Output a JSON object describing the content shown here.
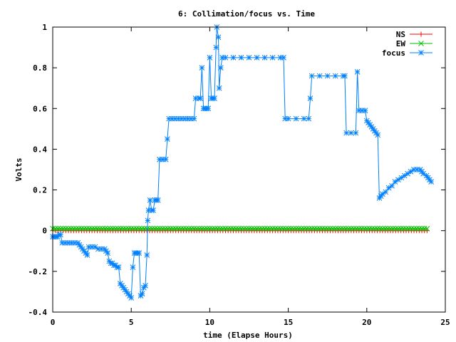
{
  "chart_data": {
    "type": "line",
    "title": "6: Collimation/focus vs. Time",
    "xlabel": "time (Elapse Hours)",
    "ylabel": "Volts",
    "xlim": [
      0,
      25
    ],
    "ylim": [
      -0.4,
      1
    ],
    "xticks": [
      0,
      5,
      10,
      15,
      20,
      25
    ],
    "yticks": [
      -0.4,
      -0.2,
      0,
      0.2,
      0.4,
      0.6,
      0.8,
      1
    ],
    "x_tick_labels": [
      "0",
      "5",
      "10",
      "15",
      "20",
      "25"
    ],
    "y_tick_labels": [
      "-0.4",
      "-0.2",
      "0",
      "0.2",
      "0.4",
      "0.6",
      "0.8",
      "1"
    ],
    "grid": false,
    "legend_position": "top-right",
    "series": [
      {
        "name": "NS",
        "color": "#ff0000",
        "marker": "plus",
        "x_start": 0,
        "x_end": 24,
        "x_step": 0.1667,
        "constant_value": 0.0
      },
      {
        "name": "EW",
        "color": "#00c000",
        "marker": "cross",
        "x_start": 0,
        "x_end": 24,
        "x_step": 0.1667,
        "constant_value": 0.01
      },
      {
        "name": "focus",
        "color": "#0080ff",
        "marker": "star",
        "points": [
          [
            0.0,
            -0.03
          ],
          [
            0.1,
            -0.03
          ],
          [
            0.2,
            -0.03
          ],
          [
            0.3,
            -0.03
          ],
          [
            0.4,
            -0.02
          ],
          [
            0.5,
            -0.02
          ],
          [
            0.6,
            -0.06
          ],
          [
            0.8,
            -0.06
          ],
          [
            1.0,
            -0.06
          ],
          [
            1.2,
            -0.06
          ],
          [
            1.4,
            -0.06
          ],
          [
            1.6,
            -0.06
          ],
          [
            1.7,
            -0.07
          ],
          [
            1.8,
            -0.08
          ],
          [
            1.9,
            -0.09
          ],
          [
            2.0,
            -0.1
          ],
          [
            2.1,
            -0.11
          ],
          [
            2.2,
            -0.12
          ],
          [
            2.3,
            -0.08
          ],
          [
            2.5,
            -0.08
          ],
          [
            2.7,
            -0.08
          ],
          [
            2.9,
            -0.09
          ],
          [
            3.1,
            -0.09
          ],
          [
            3.3,
            -0.09
          ],
          [
            3.4,
            -0.1
          ],
          [
            3.5,
            -0.11
          ],
          [
            3.6,
            -0.15
          ],
          [
            3.7,
            -0.16
          ],
          [
            3.8,
            -0.16
          ],
          [
            3.9,
            -0.17
          ],
          [
            4.0,
            -0.17
          ],
          [
            4.1,
            -0.18
          ],
          [
            4.2,
            -0.18
          ],
          [
            4.3,
            -0.26
          ],
          [
            4.4,
            -0.27
          ],
          [
            4.5,
            -0.28
          ],
          [
            4.6,
            -0.29
          ],
          [
            4.7,
            -0.3
          ],
          [
            4.8,
            -0.31
          ],
          [
            4.9,
            -0.32
          ],
          [
            5.0,
            -0.33
          ],
          [
            5.1,
            -0.18
          ],
          [
            5.2,
            -0.11
          ],
          [
            5.3,
            -0.11
          ],
          [
            5.4,
            -0.11
          ],
          [
            5.5,
            -0.11
          ],
          [
            5.6,
            -0.32
          ],
          [
            5.7,
            -0.31
          ],
          [
            5.8,
            -0.28
          ],
          [
            5.9,
            -0.27
          ],
          [
            6.0,
            -0.12
          ],
          [
            6.05,
            0.05
          ],
          [
            6.1,
            0.1
          ],
          [
            6.2,
            0.15
          ],
          [
            6.3,
            0.1
          ],
          [
            6.4,
            0.1
          ],
          [
            6.5,
            0.15
          ],
          [
            6.6,
            0.15
          ],
          [
            6.7,
            0.15
          ],
          [
            6.8,
            0.35
          ],
          [
            7.0,
            0.35
          ],
          [
            7.2,
            0.35
          ],
          [
            7.3,
            0.45
          ],
          [
            7.4,
            0.55
          ],
          [
            7.6,
            0.55
          ],
          [
            7.8,
            0.55
          ],
          [
            8.0,
            0.55
          ],
          [
            8.2,
            0.55
          ],
          [
            8.4,
            0.55
          ],
          [
            8.6,
            0.55
          ],
          [
            8.8,
            0.55
          ],
          [
            9.0,
            0.55
          ],
          [
            9.1,
            0.65
          ],
          [
            9.3,
            0.65
          ],
          [
            9.4,
            0.65
          ],
          [
            9.5,
            0.8
          ],
          [
            9.6,
            0.6
          ],
          [
            9.7,
            0.6
          ],
          [
            9.8,
            0.6
          ],
          [
            9.9,
            0.6
          ],
          [
            10.0,
            0.85
          ],
          [
            10.1,
            0.65
          ],
          [
            10.2,
            0.65
          ],
          [
            10.3,
            0.65
          ],
          [
            10.4,
            0.9
          ],
          [
            10.45,
            1.0
          ],
          [
            10.55,
            0.95
          ],
          [
            10.6,
            0.7
          ],
          [
            10.7,
            0.8
          ],
          [
            10.8,
            0.85
          ],
          [
            11.0,
            0.85
          ],
          [
            11.5,
            0.85
          ],
          [
            12.0,
            0.85
          ],
          [
            12.5,
            0.85
          ],
          [
            13.0,
            0.85
          ],
          [
            13.5,
            0.85
          ],
          [
            14.0,
            0.85
          ],
          [
            14.5,
            0.85
          ],
          [
            14.7,
            0.85
          ],
          [
            14.8,
            0.55
          ],
          [
            15.0,
            0.55
          ],
          [
            15.5,
            0.55
          ],
          [
            16.0,
            0.55
          ],
          [
            16.3,
            0.55
          ],
          [
            16.4,
            0.65
          ],
          [
            16.5,
            0.76
          ],
          [
            17.0,
            0.76
          ],
          [
            17.5,
            0.76
          ],
          [
            18.0,
            0.76
          ],
          [
            18.5,
            0.76
          ],
          [
            18.6,
            0.76
          ],
          [
            18.7,
            0.48
          ],
          [
            19.0,
            0.48
          ],
          [
            19.3,
            0.48
          ],
          [
            19.4,
            0.78
          ],
          [
            19.5,
            0.59
          ],
          [
            19.7,
            0.59
          ],
          [
            19.9,
            0.59
          ],
          [
            20.0,
            0.54
          ],
          [
            20.1,
            0.53
          ],
          [
            20.2,
            0.52
          ],
          [
            20.3,
            0.51
          ],
          [
            20.4,
            0.5
          ],
          [
            20.5,
            0.49
          ],
          [
            20.6,
            0.48
          ],
          [
            20.7,
            0.47
          ],
          [
            20.8,
            0.16
          ],
          [
            20.9,
            0.17
          ],
          [
            21.0,
            0.18
          ],
          [
            21.2,
            0.19
          ],
          [
            21.4,
            0.21
          ],
          [
            21.6,
            0.22
          ],
          [
            21.8,
            0.24
          ],
          [
            22.0,
            0.25
          ],
          [
            22.2,
            0.26
          ],
          [
            22.4,
            0.27
          ],
          [
            22.6,
            0.28
          ],
          [
            22.8,
            0.29
          ],
          [
            23.0,
            0.3
          ],
          [
            23.2,
            0.3
          ],
          [
            23.4,
            0.3
          ],
          [
            23.5,
            0.29
          ],
          [
            23.6,
            0.28
          ],
          [
            23.8,
            0.27
          ],
          [
            23.9,
            0.26
          ],
          [
            24.0,
            0.25
          ],
          [
            24.1,
            0.24
          ]
        ]
      }
    ]
  }
}
